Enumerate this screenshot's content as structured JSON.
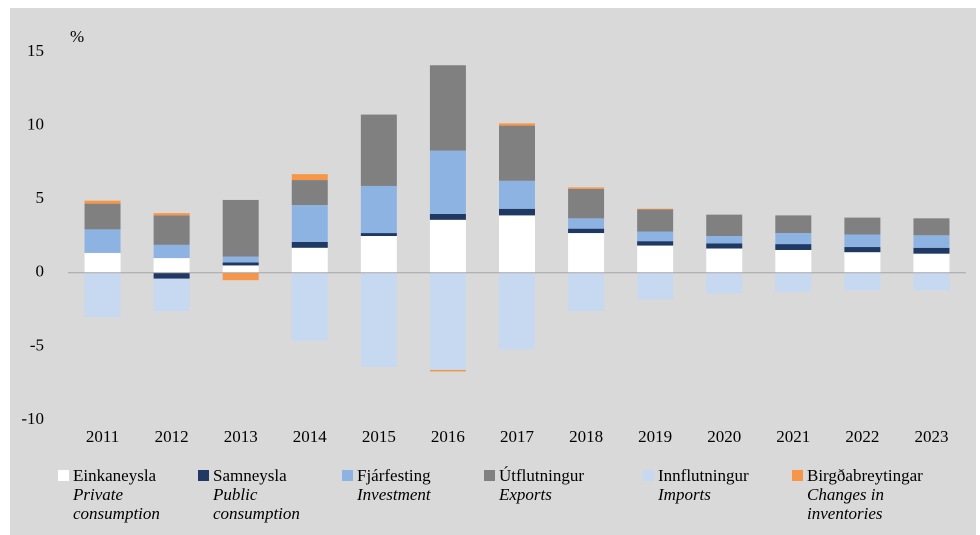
{
  "chart_data": {
    "type": "bar",
    "stacked": true,
    "y_label": "%",
    "categories": [
      "2011",
      "2012",
      "2013",
      "2014",
      "2015",
      "2016",
      "2017",
      "2018",
      "2019",
      "2020",
      "2021",
      "2022",
      "2023"
    ],
    "series": [
      {
        "name": "Einkaneysla",
        "name_en": "Private consumption",
        "color": "#ffffff",
        "values": [
          1.35,
          1.0,
          0.5,
          1.7,
          2.5,
          3.6,
          3.9,
          2.7,
          1.85,
          1.65,
          1.55,
          1.4,
          1.3
        ]
      },
      {
        "name": "Samneysla",
        "name_en": "Public consumption",
        "color": "#1f3864",
        "values": [
          0,
          -0.4,
          0.2,
          0.4,
          0.2,
          0.4,
          0.45,
          0.3,
          0.3,
          0.35,
          0.4,
          0.35,
          0.4
        ]
      },
      {
        "name": "Fjárfesting",
        "name_en": "Investment",
        "color": "#8db3e2",
        "values": [
          1.6,
          0.9,
          0.4,
          2.5,
          3.2,
          4.3,
          1.9,
          0.7,
          0.65,
          0.5,
          0.75,
          0.85,
          0.85
        ]
      },
      {
        "name": "Útflutningur",
        "name_en": "Exports",
        "color": "#808080",
        "values": [
          1.75,
          2.0,
          3.85,
          1.7,
          4.85,
          5.8,
          3.75,
          2.0,
          1.5,
          1.45,
          1.2,
          1.15,
          1.15
        ]
      },
      {
        "name": "Innflutningur",
        "name_en": "Imports",
        "color": "#c6d9f1",
        "values": [
          -3.0,
          -2.2,
          0,
          -4.6,
          -6.4,
          -6.6,
          -5.2,
          -2.6,
          -1.8,
          -1.4,
          -1.3,
          -1.2,
          -1.2
        ]
      },
      {
        "name": "Birgðabreytingar",
        "name_en": "Changes in inventories",
        "color": "#f79646",
        "values": [
          0.2,
          0.15,
          -0.5,
          0.4,
          0,
          -0.1,
          0.15,
          0.1,
          0.05,
          0,
          0,
          0,
          0
        ]
      }
    ],
    "ylim": [
      -10,
      15
    ],
    "yticks": [
      -10,
      -5,
      0,
      5,
      10,
      15
    ]
  }
}
